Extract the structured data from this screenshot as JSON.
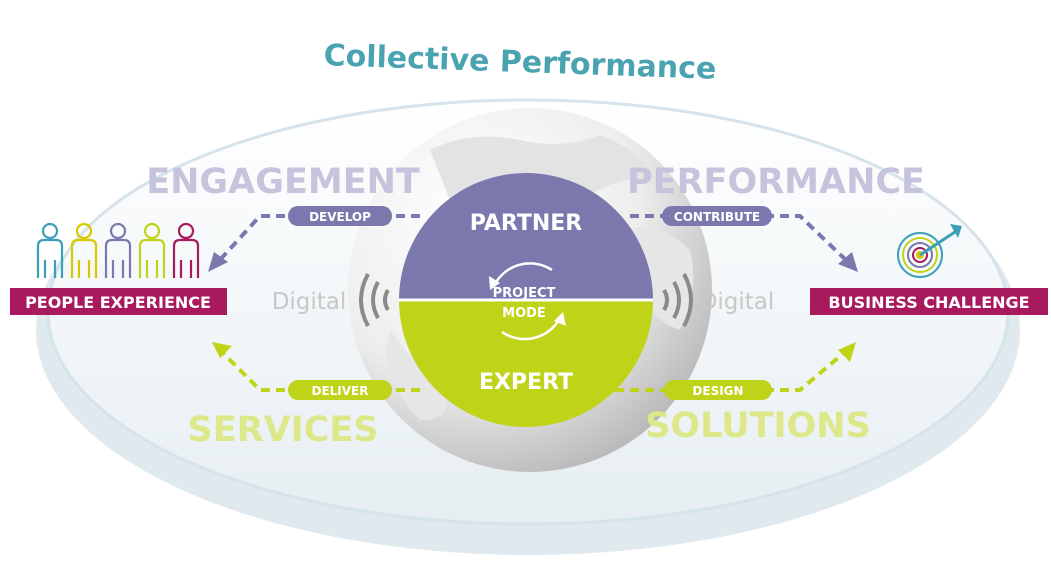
{
  "title": "Collective Performance",
  "quadrant_words": {
    "top_left": "ENGAGEMENT",
    "top_right": "PERFORMANCE",
    "bottom_left": "SERVICES",
    "bottom_right": "SOLUTIONS"
  },
  "arrow_labels": {
    "top_left": "DEVELOP",
    "top_right": "CONTRIBUTE",
    "bottom_left": "DELIVER",
    "bottom_right": "DESIGN"
  },
  "center": {
    "top": "PARTNER",
    "bottom": "EXPERT",
    "mode_line1": "PROJECT",
    "mode_line2": "MODE"
  },
  "digital_left": "Digital",
  "digital_right": "Digital",
  "left_box": "PEOPLE EXPERIENCE",
  "right_box": "BUSINESS CHALLENGE",
  "colors": {
    "purple": "#7b78ae",
    "lime": "#bfd318",
    "magenta": "#a8195d",
    "teal": "#3c8c9d",
    "light_purple": "#c6c3dd",
    "light_lime": "#dce88a",
    "grey_text": "#c8c8c8"
  },
  "people_colors": [
    "#3aa0b8",
    "#d8c800",
    "#7b78ae",
    "#bfd318",
    "#a8195d"
  ],
  "icons": [
    "people-icon",
    "target-icon",
    "wave-icon",
    "cycle-arrows-icon",
    "globe-icon"
  ]
}
